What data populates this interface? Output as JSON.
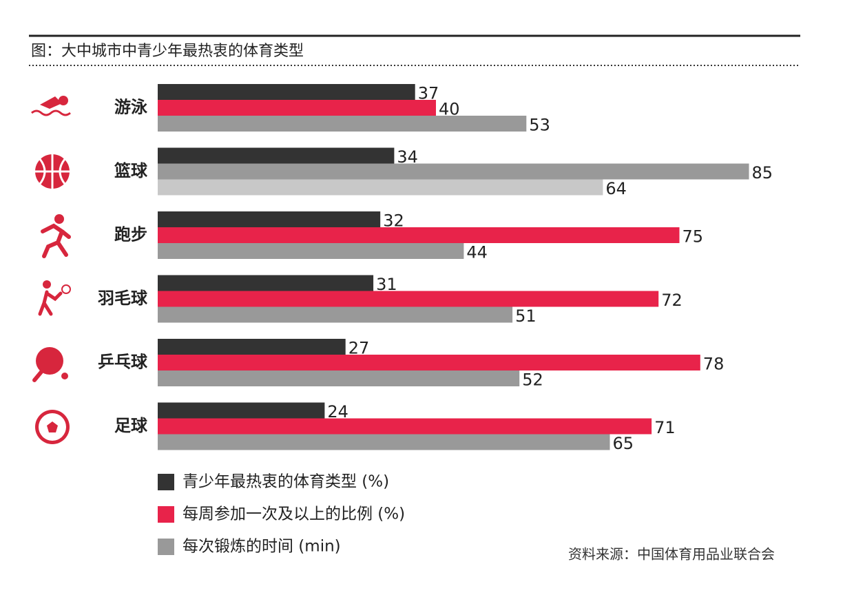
{
  "chart_data": {
    "type": "grouped-hbar",
    "title": "图：大中城市中青少年最热衷的体育类型",
    "source": "资料来源：中国体育用品业联合会",
    "categories": [
      "游泳",
      "篮球",
      "跑步",
      "羽毛球",
      "乒乓球",
      "足球"
    ],
    "series": [
      {
        "name": "青少年最热衷的体育类型 (%)",
        "color": "#333333",
        "values": [
          37,
          34,
          32,
          31,
          27,
          24
        ]
      },
      {
        "name": "每周参加一次及以上的比例 (%)",
        "color": "#e8234a",
        "colors": [
          "#e8234a",
          "#999999",
          "#e8234a",
          "#e8234a",
          "#e8234a",
          "#e8234a"
        ],
        "values": [
          40,
          85,
          75,
          72,
          78,
          71
        ]
      },
      {
        "name": "每次锻炼的时间 (min)",
        "color": "#999999",
        "colors": [
          "#999999",
          "#c8c8c8",
          "#999999",
          "#999999",
          "#999999",
          "#999999"
        ],
        "values": [
          53,
          64,
          44,
          51,
          52,
          65
        ]
      }
    ]
  }
}
